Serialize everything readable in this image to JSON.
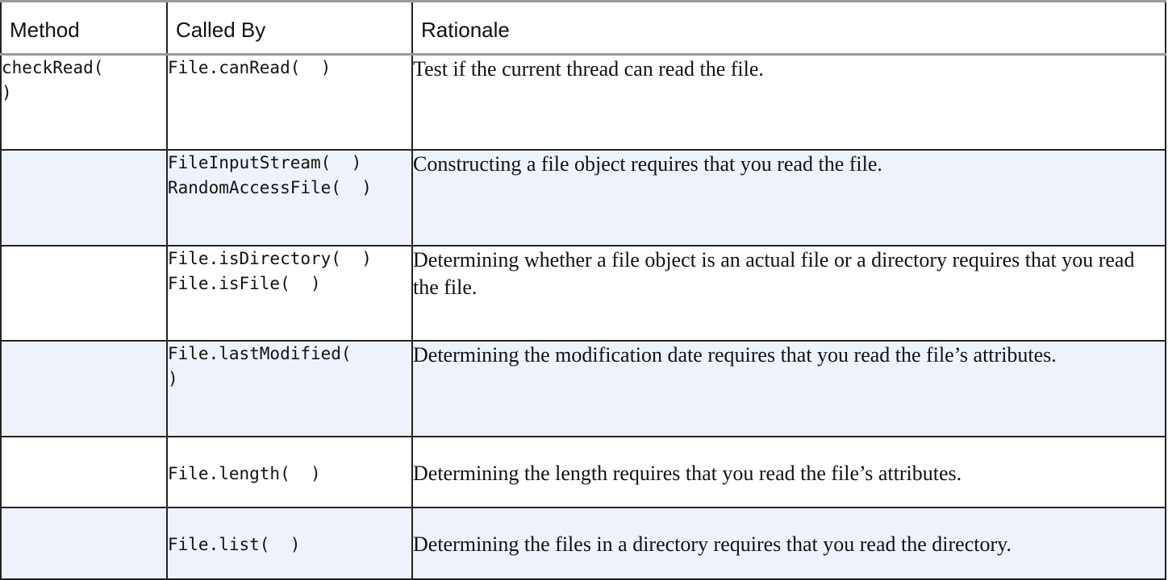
{
  "headers": {
    "method": "Method",
    "called_by": "Called By",
    "rationale": "Rationale"
  },
  "rows": [
    {
      "method": "checkRead(\n)",
      "called_by": "File.canRead(  )",
      "rationale": "Test if the current thread can read the file."
    },
    {
      "method": "",
      "called_by": "FileInputStream(  )\nRandomAccessFile(  )",
      "rationale": "Constructing a file object requires that you read the file."
    },
    {
      "method": "",
      "called_by": "File.isDirectory(  )\nFile.isFile(  )",
      "rationale": "Determining whether a file object is an actual file or a directory requires that you read the file."
    },
    {
      "method": "",
      "called_by": "File.lastModified(\n)",
      "rationale": "Determining the modification date requires that you read the file’s attributes."
    },
    {
      "method": "",
      "called_by": "File.length(  )",
      "rationale": "Determining the length requires that you read the file’s attributes."
    },
    {
      "method": "",
      "called_by": "File.list(  )",
      "rationale": "Determining the files in a directory requires that you read the directory."
    }
  ]
}
